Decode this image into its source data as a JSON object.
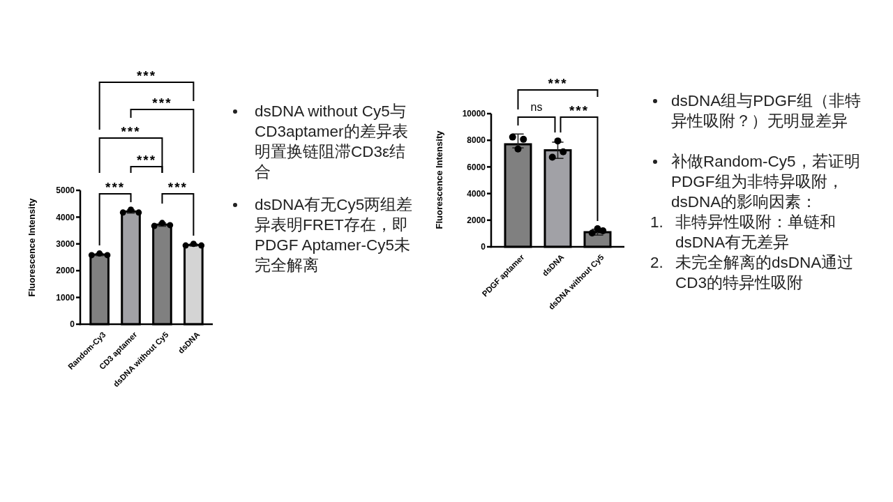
{
  "chart_data": [
    {
      "type": "bar",
      "ylabel": "Fluorescence Intensity",
      "categories": [
        "Random-Cy3",
        "CD3 aptamer",
        "dsDNA without Cy5",
        "dsDNA"
      ],
      "ylim": [
        0,
        5000
      ],
      "yticks": [
        0,
        1000,
        2000,
        3000,
        4000,
        5000
      ],
      "annotations": [
        "***",
        "***",
        "***",
        "***",
        "***",
        "***"
      ],
      "series": [
        {
          "type": "bar",
          "colors": [
            "#808080",
            "#a1a1a6",
            "#808080",
            "#d4d4d4"
          ],
          "values": [
            2600,
            4210,
            3720,
            2960
          ],
          "errors": [
            40,
            60,
            60,
            40
          ]
        },
        {
          "type": "scatter",
          "color": "#000000",
          "marker": "circle",
          "x": [
            "Random-Cy3",
            "Random-Cy3",
            "Random-Cy3",
            "CD3 aptamer",
            "CD3 aptamer",
            "CD3 aptamer",
            "dsDNA without Cy5",
            "dsDNA without Cy5",
            "dsDNA without Cy5",
            "dsDNA",
            "dsDNA",
            "dsDNA"
          ],
          "values": [
            2580,
            2640,
            2580,
            4170,
            4280,
            4170,
            3670,
            3780,
            3700,
            2940,
            3000,
            2940
          ]
        }
      ]
    },
    {
      "type": "other",
      "annotations": [
        "dsDNA without Cy5与CD3aptamer的差异表明置换链阻滞CD3ε结合",
        "dsDNA有无Cy5两组差异表明FRET存在，即PDGF Aptamer-Cy5未完全解离"
      ]
    },
    {
      "type": "bar",
      "ylabel": "Fluorescence Intensity",
      "categories": [
        "PDGF aptamer",
        "dsDNA",
        "dsDNA without Cy5"
      ],
      "ylim": [
        0,
        10000
      ],
      "yticks": [
        0,
        2000,
        4000,
        6000,
        8000,
        10000
      ],
      "annotations": [
        "ns",
        "***",
        "***"
      ],
      "series": [
        {
          "type": "bar",
          "colors": [
            "#808080",
            "#a1a1a6",
            "#808080"
          ],
          "values": [
            7700,
            7250,
            1100
          ],
          "errors": [
            [
              7430,
              8470
            ],
            610,
            220
          ]
        },
        {
          "type": "scatter",
          "color": "#000000",
          "marker": "circle",
          "x": [
            "PDGF aptamer",
            "PDGF aptamer",
            "PDGF aptamer",
            "dsDNA",
            "dsDNA",
            "dsDNA",
            "dsDNA without Cy5",
            "dsDNA without Cy5",
            "dsDNA without Cy5"
          ],
          "values": [
            8240,
            7340,
            8070,
            6730,
            7950,
            7130,
            1030,
            1360,
            1200
          ]
        }
      ]
    },
    {
      "type": "other",
      "annotations": [
        "dsDNA组与PDGF组（非特异性吸附？）无明显差异",
        "补做Random-Cy5，若证明PDGF组为非特异吸附，dsDNA的影响因素：",
        "1. 非特异性吸附：单链和dsDNA有无差异",
        "2. 未完全解离的dsDNA通过CD3的特异性吸附"
      ]
    }
  ]
}
